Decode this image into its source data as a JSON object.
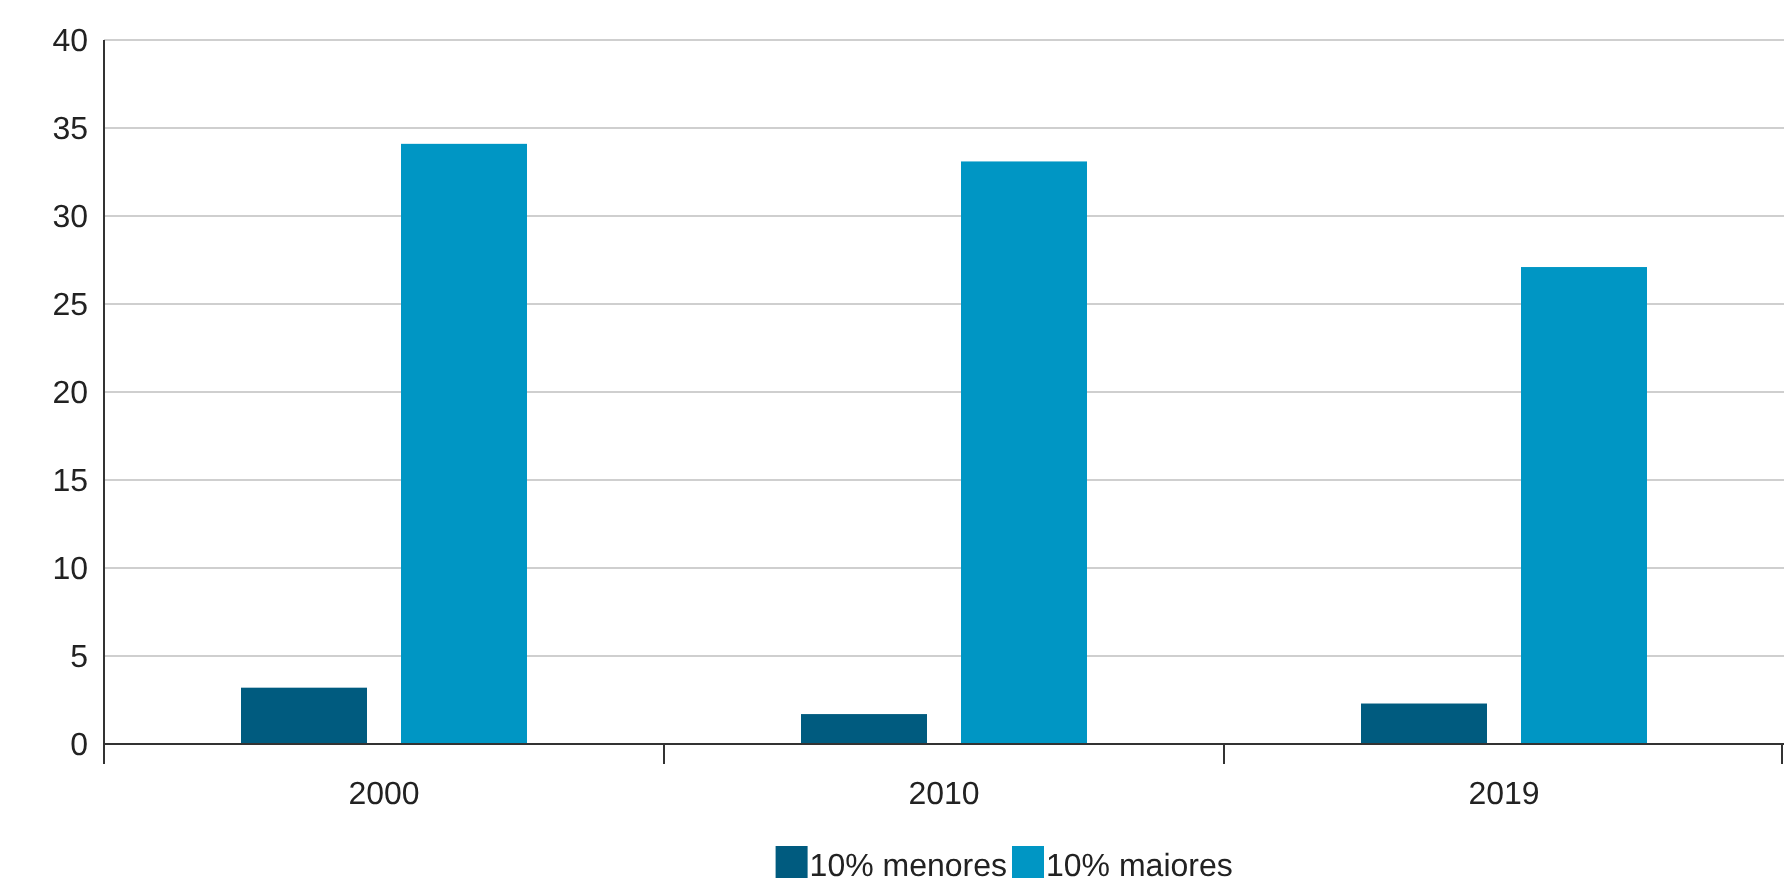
{
  "chart_data": {
    "type": "bar",
    "categories": [
      "2000",
      "2010",
      "2019"
    ],
    "series": [
      {
        "name": "10% menores",
        "color": "#005b7f",
        "values": [
          3.2,
          1.7,
          2.3
        ]
      },
      {
        "name": "10% maiores",
        "color": "#0096c4",
        "values": [
          34.1,
          33.1,
          27.1
        ]
      }
    ],
    "ylim": [
      0,
      40
    ],
    "yticks": [
      0,
      5,
      10,
      15,
      20,
      25,
      30,
      35,
      40
    ],
    "grid": "y",
    "legend": "bottom"
  }
}
